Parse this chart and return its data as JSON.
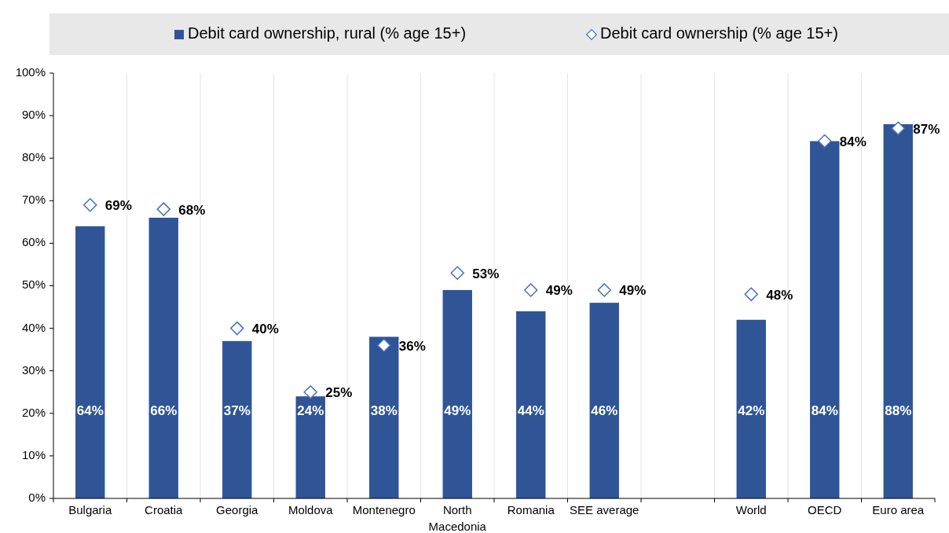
{
  "chart_data": {
    "type": "bar",
    "categories": [
      "Bulgaria",
      "Croatia",
      "Georgia",
      "Moldova",
      "Montenegro",
      "North Macedonia",
      "Romania",
      "SEE average",
      null,
      "World",
      "OECD",
      "Euro area"
    ],
    "series": [
      {
        "name": "Debit card ownership, rural (% age 15+)",
        "color": "#2f5597",
        "values": [
          64,
          66,
          37,
          24,
          38,
          49,
          44,
          46,
          null,
          42,
          84,
          88
        ],
        "value_labels": [
          "64%",
          "66%",
          "37%",
          "24%",
          "38%",
          "49%",
          "44%",
          "46%",
          null,
          "42%",
          "84%",
          "88%"
        ]
      },
      {
        "name": "Debit card ownership (% age 15+)",
        "type": "scatter",
        "color": "#4472c4",
        "marker": "diamond",
        "values": [
          69,
          68,
          40,
          25,
          36,
          53,
          49,
          49,
          null,
          48,
          84,
          87
        ],
        "value_labels": [
          "69%",
          "68%",
          "40%",
          "25%",
          "36%",
          "53%",
          "49%",
          "49%",
          null,
          "48%",
          "84%",
          "87%"
        ]
      }
    ],
    "ylim": [
      0,
      100
    ],
    "yticks": [
      {
        "value": 0,
        "label": "0%"
      },
      {
        "value": 10,
        "label": "10%"
      },
      {
        "value": 20,
        "label": "20%"
      },
      {
        "value": 30,
        "label": "30%"
      },
      {
        "value": 40,
        "label": "40%"
      },
      {
        "value": 50,
        "label": "50%"
      },
      {
        "value": 60,
        "label": "60%"
      },
      {
        "value": 70,
        "label": "70%"
      },
      {
        "value": 80,
        "label": "80%"
      },
      {
        "value": 90,
        "label": "90%"
      },
      {
        "value": 100,
        "label": "100%"
      }
    ],
    "grid": "x",
    "legend": "top"
  }
}
